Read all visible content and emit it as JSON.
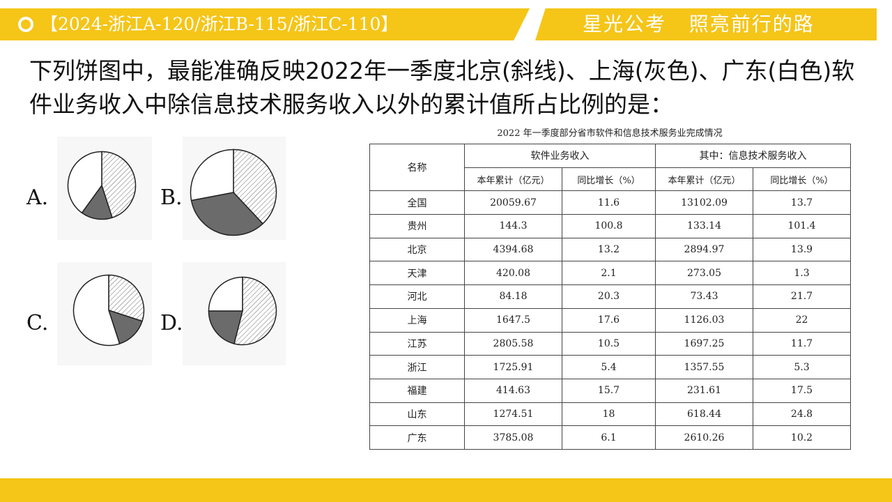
{
  "header": {
    "title": "【2024-浙江A-120/浙江B-115/浙江C-110】",
    "slogan": "星光公考   照亮前行的路",
    "accent_color": "#f5c518"
  },
  "question": {
    "text": "下列饼图中，最能准确反映2022年一季度北京(斜线)、上海(灰色)、广东(白色)软件业务收入中除信息技术服务收入以外的累计值所占比例的是："
  },
  "options": [
    {
      "letter": "A.",
      "slices": [
        {
          "fill": "hatched",
          "fraction": 0.45
        },
        {
          "fill": "gray",
          "fraction": 0.15
        },
        {
          "fill": "white",
          "fraction": 0.4
        }
      ]
    },
    {
      "letter": "B.",
      "slices": [
        {
          "fill": "hatched",
          "fraction": 0.38
        },
        {
          "fill": "gray",
          "fraction": 0.34
        },
        {
          "fill": "white",
          "fraction": 0.28
        }
      ]
    },
    {
      "letter": "C.",
      "slices": [
        {
          "fill": "hatched",
          "fraction": 0.3
        },
        {
          "fill": "gray",
          "fraction": 0.15
        },
        {
          "fill": "white",
          "fraction": 0.55
        }
      ]
    },
    {
      "letter": "D.",
      "slices": [
        {
          "fill": "hatched",
          "fraction": 0.54
        },
        {
          "fill": "gray",
          "fraction": 0.21
        },
        {
          "fill": "white",
          "fraction": 0.25
        }
      ]
    }
  ],
  "table": {
    "caption": "2022 年一季度部分省市软件和信息技术服务业完成情况",
    "header_name": "名称",
    "group_headers": [
      "软件业务收入",
      "其中：信息技术服务收入"
    ],
    "sub_headers": [
      "本年累计（亿元）",
      "同比增长（%）",
      "本年累计（亿元）",
      "同比增长（%）"
    ],
    "rows": [
      [
        "全国",
        "20059.67",
        "11.6",
        "13102.09",
        "13.7"
      ],
      [
        "贵州",
        "144.3",
        "100.8",
        "133.14",
        "101.4"
      ],
      [
        "北京",
        "4394.68",
        "13.2",
        "2894.97",
        "13.9"
      ],
      [
        "天津",
        "420.08",
        "2.1",
        "273.05",
        "1.3"
      ],
      [
        "河北",
        "84.18",
        "20.3",
        "73.43",
        "21.7"
      ],
      [
        "上海",
        "1647.5",
        "17.6",
        "1126.03",
        "22"
      ],
      [
        "江苏",
        "2805.58",
        "10.5",
        "1697.25",
        "11.7"
      ],
      [
        "浙江",
        "1725.91",
        "5.4",
        "1357.55",
        "5.3"
      ],
      [
        "福建",
        "414.63",
        "15.7",
        "231.61",
        "17.5"
      ],
      [
        "山东",
        "1274.51",
        "18",
        "618.44",
        "24.8"
      ],
      [
        "广东",
        "3785.08",
        "6.1",
        "2610.26",
        "10.2"
      ]
    ]
  }
}
